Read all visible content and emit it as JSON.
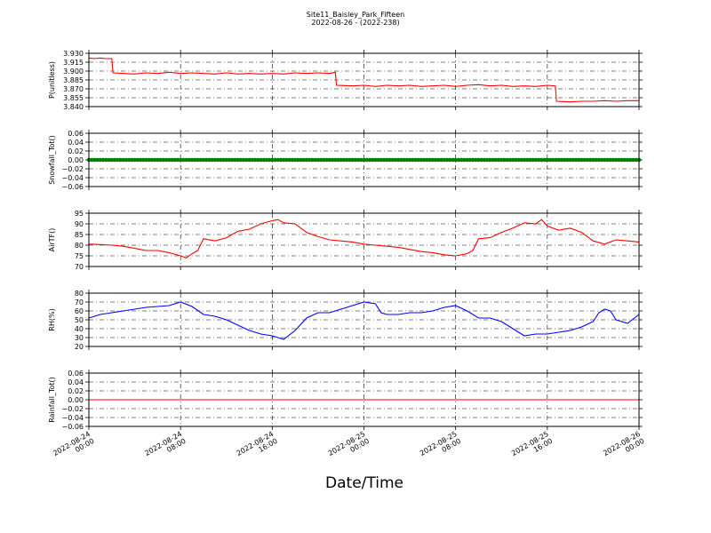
{
  "title": "Site11_Baisley_Park_Fifteen",
  "subtitle": "2022-08-26 - (2022-238)",
  "xlabel": "Date/Time",
  "x_ticks": [
    {
      "line1": "2022-08-24",
      "line2": "00:00",
      "value": 0
    },
    {
      "line1": "2022-08-24",
      "line2": "08:00",
      "value": 8
    },
    {
      "line1": "2022-08-24",
      "line2": "16:00",
      "value": 16
    },
    {
      "line1": "2022-08-25",
      "line2": "00:00",
      "value": 24
    },
    {
      "line1": "2022-08-25",
      "line2": "08:00",
      "value": 32
    },
    {
      "line1": "2022-08-25",
      "line2": "16:00",
      "value": 40
    },
    {
      "line1": "2022-08-26",
      "line2": "00:00",
      "value": 48
    }
  ],
  "chart_data": [
    {
      "type": "line",
      "ylabel": "P(unitless)",
      "xlim": [
        0,
        48
      ],
      "ylim": [
        3.84,
        3.93
      ],
      "yticks": [
        "3.840",
        "3.855",
        "3.870",
        "3.885",
        "3.900",
        "3.915",
        "3.930"
      ],
      "grid": true,
      "color": "#ff0000",
      "points": [
        [
          0,
          3.922
        ],
        [
          0.5,
          3.921
        ],
        [
          1,
          3.922
        ],
        [
          1.5,
          3.921
        ],
        [
          2,
          3.921
        ],
        [
          2.1,
          3.897
        ],
        [
          3,
          3.896
        ],
        [
          4,
          3.895
        ],
        [
          5,
          3.897
        ],
        [
          6,
          3.896
        ],
        [
          7,
          3.898
        ],
        [
          8,
          3.896
        ],
        [
          9,
          3.897
        ],
        [
          10,
          3.896
        ],
        [
          11,
          3.895
        ],
        [
          12,
          3.897
        ],
        [
          13,
          3.895
        ],
        [
          14,
          3.896
        ],
        [
          15,
          3.895
        ],
        [
          16,
          3.896
        ],
        [
          17,
          3.895
        ],
        [
          18,
          3.897
        ],
        [
          19,
          3.896
        ],
        [
          20,
          3.897
        ],
        [
          21,
          3.896
        ],
        [
          21.5,
          3.898
        ],
        [
          21.6,
          3.876
        ],
        [
          23,
          3.875
        ],
        [
          24,
          3.876
        ],
        [
          25,
          3.874
        ],
        [
          26,
          3.876
        ],
        [
          27,
          3.875
        ],
        [
          28,
          3.876
        ],
        [
          29,
          3.874
        ],
        [
          30,
          3.875
        ],
        [
          31,
          3.876
        ],
        [
          32,
          3.874
        ],
        [
          33,
          3.876
        ],
        [
          34,
          3.877
        ],
        [
          35,
          3.875
        ],
        [
          36,
          3.876
        ],
        [
          37,
          3.874
        ],
        [
          38,
          3.875
        ],
        [
          39,
          3.874
        ],
        [
          40,
          3.876
        ],
        [
          40.7,
          3.875
        ],
        [
          40.8,
          3.849
        ],
        [
          42,
          3.848
        ],
        [
          43,
          3.849
        ],
        [
          44,
          3.849
        ],
        [
          45,
          3.85
        ],
        [
          46,
          3.849
        ],
        [
          47,
          3.85
        ],
        [
          48,
          3.85
        ]
      ]
    },
    {
      "type": "scatter",
      "ylabel": "Snowfall_Tot()",
      "xlim": [
        0,
        48
      ],
      "ylim": [
        -0.06,
        0.06
      ],
      "yticks": [
        "−0.06",
        "−0.04",
        "−0.02",
        "0.00",
        "0.02",
        "0.04",
        "0.06"
      ],
      "grid": true,
      "color": "#008000",
      "constant_value": 0.0
    },
    {
      "type": "line",
      "ylabel": "AirTF()",
      "xlim": [
        0,
        48
      ],
      "ylim": [
        70,
        95
      ],
      "yticks": [
        "70",
        "75",
        "80",
        "85",
        "90",
        "95"
      ],
      "grid": true,
      "color": "#ff0000",
      "points": [
        [
          0,
          80.5
        ],
        [
          1,
          80.3
        ],
        [
          2,
          80
        ],
        [
          3,
          79.5
        ],
        [
          4,
          78.5
        ],
        [
          5,
          77.5
        ],
        [
          6,
          77.5
        ],
        [
          7,
          76.5
        ],
        [
          8,
          75
        ],
        [
          8.5,
          74
        ],
        [
          9,
          76
        ],
        [
          9.5,
          77.5
        ],
        [
          10,
          83
        ],
        [
          11,
          82
        ],
        [
          12,
          83.5
        ],
        [
          13,
          86.5
        ],
        [
          14,
          87.5
        ],
        [
          15,
          90
        ],
        [
          16,
          91.5
        ],
        [
          16.5,
          92
        ],
        [
          17,
          90.5
        ],
        [
          18,
          90
        ],
        [
          19,
          86
        ],
        [
          20,
          84
        ],
        [
          21,
          82.5
        ],
        [
          22,
          82
        ],
        [
          23,
          81.5
        ],
        [
          24,
          80.5
        ],
        [
          25,
          80
        ],
        [
          26,
          79.5
        ],
        [
          27,
          79
        ],
        [
          28,
          78
        ],
        [
          29,
          77
        ],
        [
          30,
          76.5
        ],
        [
          31,
          75.5
        ],
        [
          32,
          75
        ],
        [
          33,
          76
        ],
        [
          33.5,
          77.5
        ],
        [
          34,
          83
        ],
        [
          35,
          83.5
        ],
        [
          36,
          86
        ],
        [
          37,
          88
        ],
        [
          38,
          90.5
        ],
        [
          39,
          90
        ],
        [
          39.5,
          92
        ],
        [
          40,
          89
        ],
        [
          41,
          87
        ],
        [
          42,
          88
        ],
        [
          43,
          86
        ],
        [
          44,
          82
        ],
        [
          45,
          80.5
        ],
        [
          46,
          82.5
        ],
        [
          47,
          82
        ],
        [
          48,
          81.5
        ]
      ]
    },
    {
      "type": "line",
      "ylabel": "RH(%)",
      "xlim": [
        0,
        48
      ],
      "ylim": [
        20,
        80
      ],
      "yticks": [
        "20",
        "30",
        "40",
        "50",
        "60",
        "70",
        "80"
      ],
      "grid": true,
      "color": "#0000ff",
      "points": [
        [
          0,
          52
        ],
        [
          1,
          56
        ],
        [
          2,
          58
        ],
        [
          3,
          60
        ],
        [
          4,
          62
        ],
        [
          5,
          64
        ],
        [
          6,
          65
        ],
        [
          7,
          66
        ],
        [
          8,
          70
        ],
        [
          9,
          65
        ],
        [
          10,
          56
        ],
        [
          11,
          54
        ],
        [
          12,
          50
        ],
        [
          13,
          44
        ],
        [
          14,
          38
        ],
        [
          15,
          34
        ],
        [
          16,
          32
        ],
        [
          16.5,
          30
        ],
        [
          17,
          28
        ],
        [
          18,
          38
        ],
        [
          19,
          52
        ],
        [
          20,
          58
        ],
        [
          21,
          58
        ],
        [
          22,
          62
        ],
        [
          23,
          66
        ],
        [
          24,
          70
        ],
        [
          25,
          68
        ],
        [
          25.5,
          58
        ],
        [
          26,
          56
        ],
        [
          27,
          56
        ],
        [
          28,
          58
        ],
        [
          29,
          58
        ],
        [
          30,
          60
        ],
        [
          31,
          64
        ],
        [
          32,
          66
        ],
        [
          33,
          60
        ],
        [
          34,
          52
        ],
        [
          35,
          52
        ],
        [
          36,
          48
        ],
        [
          37,
          40
        ],
        [
          38,
          32
        ],
        [
          39,
          34
        ],
        [
          40,
          34
        ],
        [
          41,
          36
        ],
        [
          42,
          38
        ],
        [
          43,
          42
        ],
        [
          44,
          48
        ],
        [
          44.5,
          58
        ],
        [
          45,
          62
        ],
        [
          45.5,
          60
        ],
        [
          46,
          50
        ],
        [
          47,
          46
        ],
        [
          48,
          56
        ]
      ]
    },
    {
      "type": "line",
      "ylabel": "Rainfall_Tot()",
      "xlim": [
        0,
        48
      ],
      "ylim": [
        -0.06,
        0.06
      ],
      "yticks": [
        "−0.06",
        "−0.04",
        "−0.02",
        "0.00",
        "0.02",
        "0.04",
        "0.06"
      ],
      "grid": true,
      "color": "#ff0000",
      "constant_value": 0.0
    }
  ]
}
